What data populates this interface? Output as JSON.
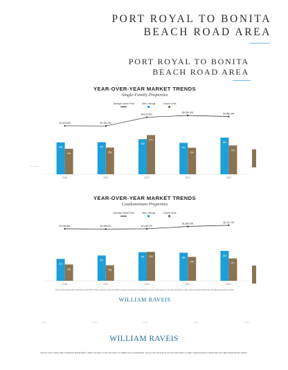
{
  "header": {
    "line1": "PORT ROYAL TO BONITA",
    "line2": "BEACH ROAD AREA"
  },
  "doc": {
    "line1": "PORT ROYAL TO BONITA",
    "line2": "BEACH ROAD AREA",
    "footnote": "Source of the market data: Southwest Florida MLS © 2022. Accuracy of the information is believed accurate but not guaranteed. Anyone who chooses to use this information to make market decisions should have this data independently verified.",
    "logo": "WILLIAM RAVEIS"
  },
  "ghost_labels": [
    "2018",
    "2019",
    "2020",
    "2021",
    "2022"
  ],
  "footer": {
    "logo": "WILLIAM RAVEIS",
    "note": "Source of the market data: Southwest Florida MLS © 2022. Accuracy of the information is reliable but not guaranteed. Anyone who chooses to use this information to make market decisions should have this data independently verified."
  },
  "colors": {
    "accent": "#1e6f9c",
    "new_listings": "#1e9fd8",
    "closed_units": "#8a7453",
    "rule": "#6fbfe0"
  },
  "chart_data": [
    {
      "type": "bar",
      "title": "YEAR-OVER-YEAR MARKET TRENDS",
      "subtitle": "Single-Family Properties",
      "legend": [
        "Average Sales Price",
        "New Listings",
        "Closed Units"
      ],
      "categories": [
        "2018",
        "2019",
        "2020",
        "2021",
        "2022"
      ],
      "series": [
        {
          "name": "New Listings",
          "values": [
            305,
            307,
            336,
            301,
            351
          ]
        },
        {
          "name": "Closed Units",
          "values": [
            244,
            256,
            375,
            254,
            276
          ]
        }
      ],
      "line": {
        "name": "Average Sales Price",
        "labels": [
          "$1,518,889",
          "$1,451,364",
          "$4,613,000",
          "$5,250,000",
          "$4,880,344"
        ],
        "values": [
          1518889,
          1451364,
          4613000,
          5250000,
          4880344
        ]
      },
      "bar_ylim": [
        0,
        450
      ],
      "line_ylim": [
        0,
        6000000
      ]
    },
    {
      "type": "bar",
      "title": "YEAR-OVER-YEAR MARKET TRENDS",
      "subtitle": "Condominium Properties",
      "legend": [
        "Average Sales Price",
        "New Listings",
        "Closed Units"
      ],
      "categories": [
        "2018",
        "2019",
        "2020",
        "2021",
        "2022"
      ],
      "series": [
        {
          "name": "New Listings",
          "values": [
            223,
            257,
            291,
            286,
            304
          ]
        },
        {
          "name": "Closed Units",
          "values": [
            166,
            158,
            294,
            243,
            227
          ]
        }
      ],
      "line": {
        "name": "Average Sales Price",
        "labels": [
          "$1,446,881",
          "$1,398,001",
          "$1,448,279",
          "$1,885,000",
          "$2,111,720"
        ],
        "values": [
          1446881,
          1398001,
          1448279,
          1885000,
          2111720
        ]
      },
      "bar_ylim": [
        0,
        450
      ],
      "line_ylim": [
        0,
        2600000
      ]
    }
  ]
}
